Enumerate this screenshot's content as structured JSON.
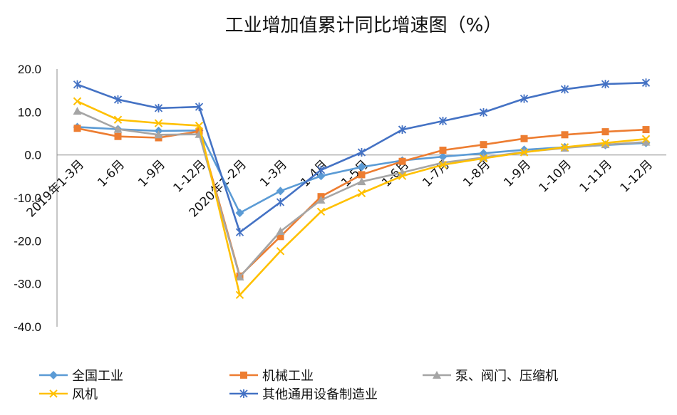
{
  "chart_data": {
    "type": "line",
    "title": "工业增加值累计同比增速图（%）",
    "xlabel": "",
    "ylabel": "",
    "ylim": [
      -40,
      20
    ],
    "yticks": [
      "20.0",
      "10.0",
      "0.0",
      "-10.0",
      "-20.0",
      "-30.0",
      "-40.0"
    ],
    "ytick_values": [
      20,
      10,
      0,
      -10,
      -20,
      -30,
      -40
    ],
    "categories": [
      "2019年1-3月",
      "1-6月",
      "1-9月",
      "1-12月",
      "2020年1-2月",
      "1-3月",
      "1-4月",
      "1-5月",
      "1-6月",
      "1-7月",
      "1-8月",
      "1-9月",
      "1-10月",
      "1-11月",
      "1-12月"
    ],
    "grid": false,
    "legend_position": "bottom",
    "series": [
      {
        "name": "全国工业",
        "color": "#5B9BD5",
        "marker": "diamond",
        "values": [
          6.5,
          6.0,
          5.6,
          5.7,
          -13.5,
          -8.4,
          -4.9,
          -2.8,
          -1.3,
          -0.4,
          0.4,
          1.2,
          1.8,
          2.3,
          2.8
        ]
      },
      {
        "name": "机械工业",
        "color": "#ED7D31",
        "marker": "square",
        "values": [
          6.2,
          4.3,
          4.0,
          5.5,
          -28.2,
          -19.0,
          -9.7,
          -4.6,
          -1.5,
          1.1,
          2.4,
          3.8,
          4.7,
          5.4,
          5.9
        ]
      },
      {
        "name": "泵、阀门、压缩机",
        "color": "#A5A5A5",
        "marker": "triangle",
        "values": [
          10.2,
          6.0,
          4.7,
          4.8,
          -28.4,
          -17.8,
          -10.5,
          -6.2,
          -4.1,
          -1.8,
          -0.6,
          0.7,
          1.6,
          2.4,
          3.0
        ]
      },
      {
        "name": "风机",
        "color": "#FFC000",
        "marker": "x",
        "values": [
          12.5,
          8.2,
          7.4,
          6.8,
          -32.6,
          -22.4,
          -13.2,
          -8.9,
          -4.9,
          -2.3,
          -0.8,
          0.6,
          1.8,
          2.8,
          3.7
        ]
      },
      {
        "name": "其他通用设备制造业",
        "color": "#4472C4",
        "marker": "star",
        "values": [
          16.4,
          12.9,
          10.9,
          11.2,
          -18.0,
          -11.0,
          -3.5,
          0.6,
          5.9,
          7.9,
          9.9,
          13.1,
          15.3,
          16.5,
          16.8
        ]
      }
    ]
  }
}
